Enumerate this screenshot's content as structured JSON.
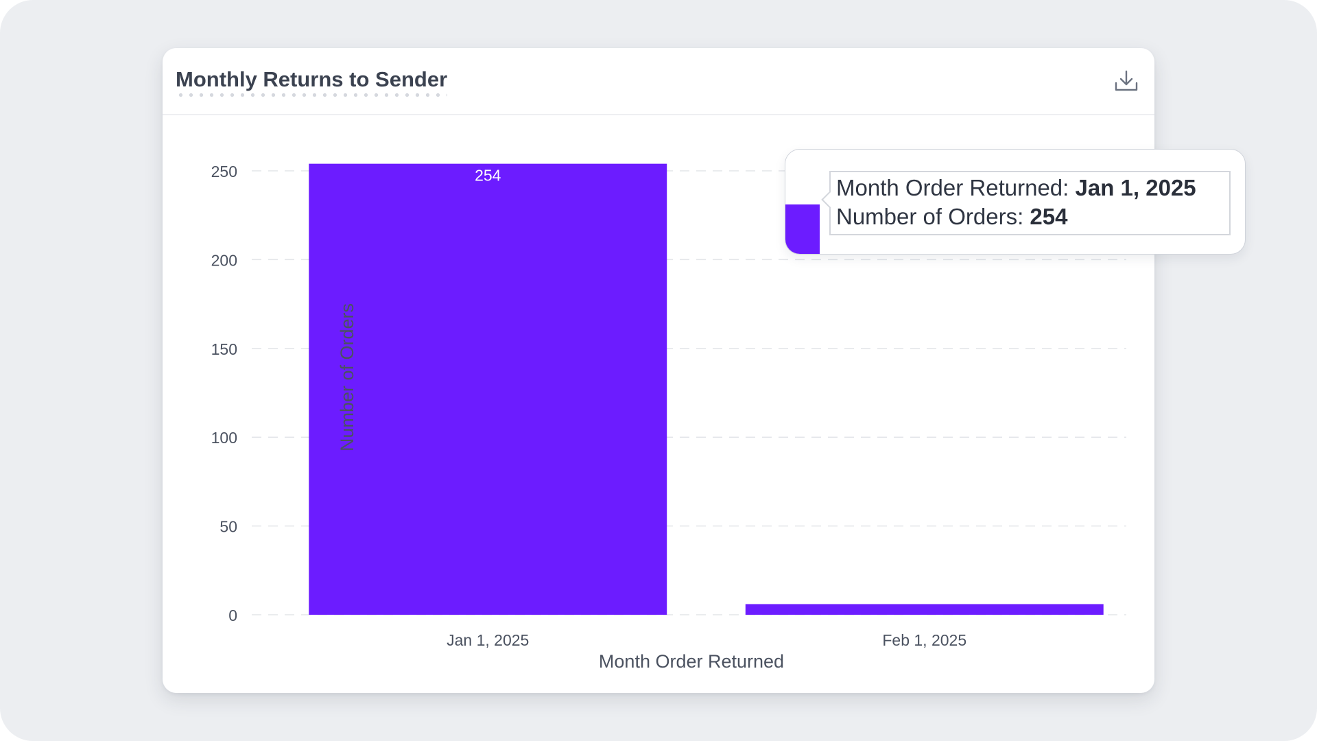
{
  "card": {
    "title": "Monthly Returns to Sender",
    "download_icon": "download-icon"
  },
  "colors": {
    "bar": "#6c1cff",
    "background": "#eceef1",
    "card": "#ffffff",
    "text": "#3b4250",
    "grid": "#e3e5e9"
  },
  "chart_data": {
    "type": "bar",
    "categories": [
      "Jan 1, 2025",
      "Feb 1, 2025"
    ],
    "values": [
      254,
      6
    ],
    "data_labels": [
      "254",
      ""
    ],
    "title": "Monthly Returns to Sender",
    "xlabel": "Month Order Returned",
    "ylabel": "Number of Orders",
    "ylim": [
      0,
      250
    ],
    "yticks": [
      0,
      50,
      100,
      150,
      200,
      250
    ],
    "grid": true,
    "legend": "none"
  },
  "tooltip": {
    "line1_label": "Month Order Returned:",
    "line1_value": "Jan 1, 2025",
    "line2_label": "Number of Orders:",
    "line2_value": "254"
  }
}
